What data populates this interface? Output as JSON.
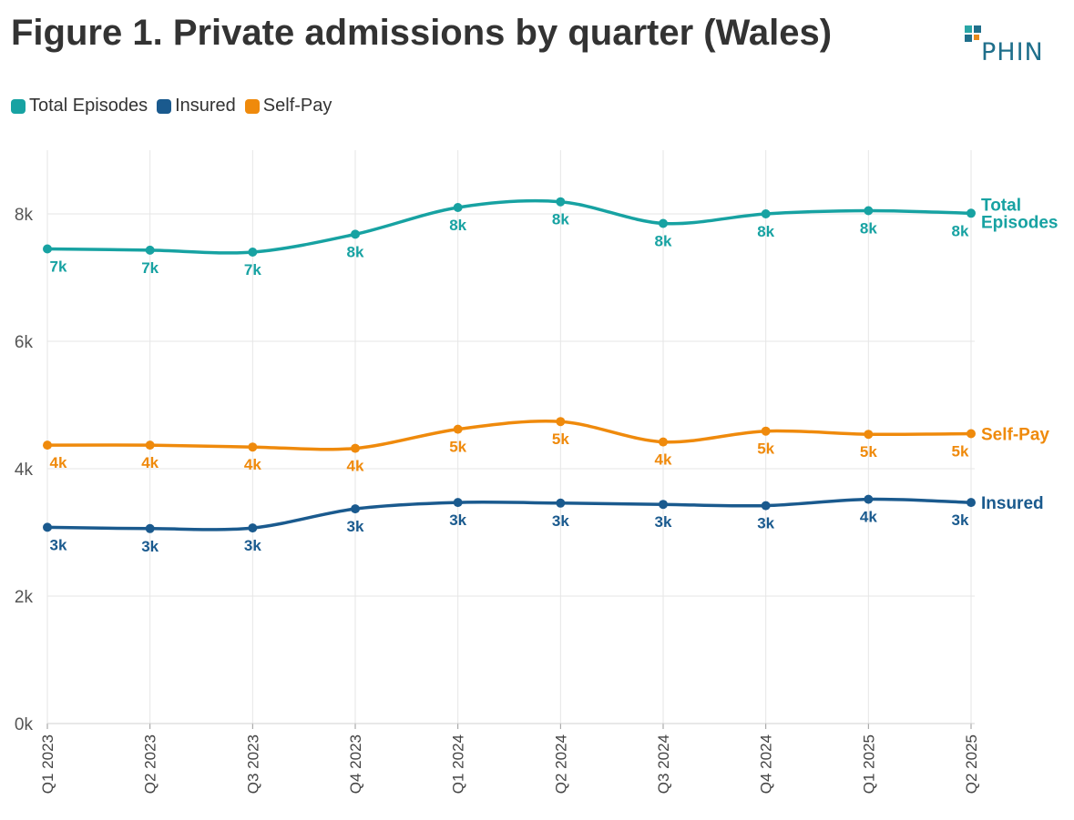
{
  "title": "Figure 1. Private admissions by quarter (Wales)",
  "logo": {
    "text": "PHIN",
    "colors": [
      "#1f6f8b",
      "#2aa6a6",
      "#e68a1c"
    ]
  },
  "legend": [
    {
      "label": "Total Episodes",
      "color": "#17a2a2"
    },
    {
      "label": "Insured",
      "color": "#1a5a8e"
    },
    {
      "label": "Self-Pay",
      "color": "#ef8a0c"
    }
  ],
  "chart_data": {
    "type": "line",
    "title": "Figure 1. Private admissions by quarter (Wales)",
    "xlabel": "",
    "ylabel": "",
    "categories": [
      "Q1 2023",
      "Q2 2023",
      "Q3 2023",
      "Q4 2023",
      "Q1 2024",
      "Q2 2024",
      "Q3 2024",
      "Q4 2024",
      "Q1 2025",
      "Q2 2025"
    ],
    "ylim": [
      0,
      9000
    ],
    "yticks": [
      0,
      2000,
      4000,
      6000,
      8000
    ],
    "ytick_labels": [
      "0k",
      "2k",
      "4k",
      "6k",
      "8k"
    ],
    "grid": true,
    "series": [
      {
        "name": "Total Episodes",
        "end_label": [
          "Total",
          "Episodes"
        ],
        "color": "#17a2a2",
        "values": [
          7450,
          7430,
          7400,
          7680,
          8100,
          8190,
          7850,
          8000,
          8050,
          8010
        ],
        "data_labels": [
          "7k",
          "7k",
          "7k",
          "8k",
          "8k",
          "8k",
          "8k",
          "8k",
          "8k",
          "8k"
        ]
      },
      {
        "name": "Self-Pay",
        "end_label": [
          "Self-Pay"
        ],
        "color": "#ef8a0c",
        "values": [
          4370,
          4370,
          4340,
          4320,
          4620,
          4740,
          4420,
          4590,
          4540,
          4550
        ],
        "data_labels": [
          "4k",
          "4k",
          "4k",
          "4k",
          "5k",
          "5k",
          "4k",
          "5k",
          "5k",
          "5k"
        ]
      },
      {
        "name": "Insured",
        "end_label": [
          "Insured"
        ],
        "color": "#1a5a8e",
        "values": [
          3080,
          3060,
          3070,
          3370,
          3470,
          3460,
          3440,
          3420,
          3520,
          3470
        ],
        "data_labels": [
          "3k",
          "3k",
          "3k",
          "3k",
          "3k",
          "3k",
          "3k",
          "3k",
          "4k",
          "3k"
        ]
      }
    ]
  }
}
